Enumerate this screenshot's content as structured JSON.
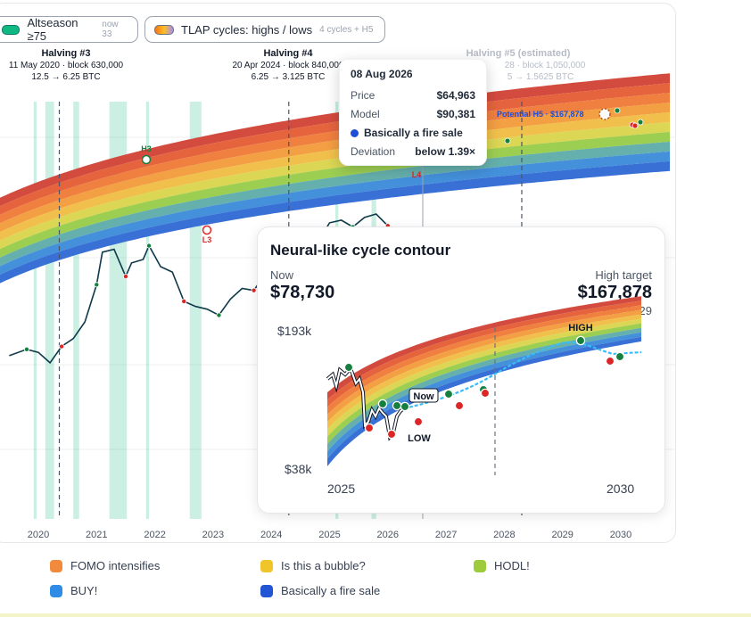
{
  "controls": {
    "altseason": {
      "label": "Altseason ≥75",
      "sub": "now 33",
      "color": "#10b981"
    },
    "tlap": {
      "label": "TLAP cycles: highs / lows",
      "sub": "4 cycles + H5"
    }
  },
  "halvings": [
    {
      "title": "Halving #3",
      "line1": "11 May 2020 · block 630,000",
      "line2": "12.5 → 6.25 BTC",
      "faded": false
    },
    {
      "title": "Halving #4",
      "line1": "20 Apr 2024 · block 840,000",
      "line2": "6.25 → 3.125 BTC",
      "faded": false
    },
    {
      "title": "Halving #5 (estimated)",
      "line1": "28 · block 1,050,000",
      "line2": "5 → 1.5625 BTC",
      "faded": true
    }
  ],
  "markers": {
    "h3": "H3",
    "l3": "L3",
    "l4": "L4",
    "h5": "Potential H5 · $167,878"
  },
  "tooltip": {
    "date": "08 Aug 2026",
    "price_label": "Price",
    "price": "$64,963",
    "model_label": "Model",
    "model": "$90,381",
    "zone": "Basically a fire sale",
    "zone_color": "#1d4ed8",
    "deviation_label": "Deviation",
    "deviation": "below 1.39×"
  },
  "inset": {
    "title": "Neural-like cycle contour",
    "now_label": "Now",
    "now_value": "$78,730",
    "high_label": "High target",
    "high_value": "$167,878",
    "high_date": "17 Sept 2029",
    "y_top": "$193k",
    "y_bottom": "$38k",
    "x_left": "2025",
    "x_right": "2030",
    "now_tag": "Now",
    "high_tag": "HIGH",
    "low_tag": "LOW"
  },
  "chart_data": {
    "type": "line",
    "x_ticks": [
      "2020",
      "2021",
      "2022",
      "2023",
      "2024",
      "2025",
      "2026",
      "2027",
      "2028",
      "2029",
      "2030"
    ],
    "series": [
      {
        "x": [
          2019.5,
          2019.8,
          2020.0,
          2020.2,
          2020.4,
          2020.6,
          2020.8,
          2021.0,
          2021.1,
          2021.3,
          2021.5,
          2021.6,
          2021.8,
          2021.9,
          2022.1,
          2022.3,
          2022.5,
          2022.7,
          2022.9,
          2023.1,
          2023.3,
          2023.5,
          2023.7,
          2023.9,
          2024.1,
          2024.2,
          2024.4,
          2024.6,
          2024.8,
          2025.0,
          2025.2,
          2025.4,
          2025.6,
          2025.8,
          2026.0
        ],
        "y": [
          8,
          9,
          8.5,
          7,
          9.5,
          11,
          15,
          30,
          55,
          58,
          35,
          45,
          48,
          62,
          42,
          38,
          22,
          20,
          19,
          17,
          23,
          28,
          27,
          37,
          48,
          70,
          65,
          60,
          66,
          95,
          100,
          88,
          105,
          112,
          90
        ]
      }
    ],
    "zones": [
      "FOMO intensifies",
      "Is this a bubble?",
      "HODL!",
      "BUY!",
      "Basically a fire sale"
    ],
    "zone_colors": [
      "#f97316",
      "#eab308",
      "#84cc16",
      "#1e88e5",
      "#2150c8"
    ]
  },
  "legend": [
    {
      "label": "FOMO intensifies",
      "color": "#f28a3c"
    },
    {
      "label": "Is this a bubble?",
      "color": "#f0c52a"
    },
    {
      "label": "HODL!",
      "color": "#9dcb3c"
    },
    {
      "label": "BUY!",
      "color": "#2f8ce6"
    },
    {
      "label": "Basically a fire sale",
      "color": "#2255d4"
    }
  ]
}
